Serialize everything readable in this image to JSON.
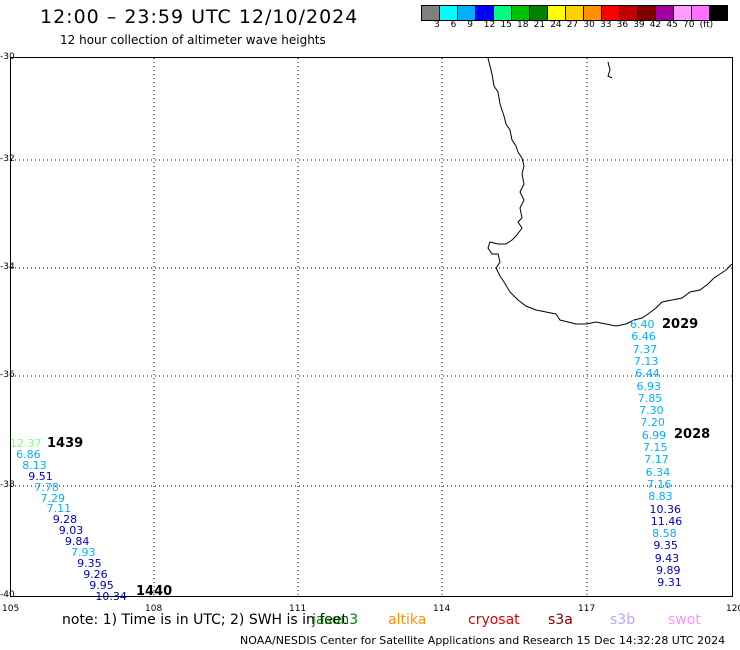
{
  "header": {
    "title": "12:00 – 23:59 UTC 12/10/2024",
    "subtitle": "12 hour collection of altimeter wave heights"
  },
  "colorbar": {
    "colors": [
      "#808080",
      "#00ffff",
      "#00b0ff",
      "#0000ff",
      "#00ff80",
      "#00c000",
      "#008000",
      "#ffff00",
      "#ffd000",
      "#ff9000",
      "#ff0000",
      "#c00000",
      "#800000",
      "#a000a0",
      "#ffa0ff",
      "#ff70ff",
      "#000000"
    ],
    "labels": [
      "3",
      "6",
      "9",
      "12",
      "15",
      "18",
      "21",
      "24",
      "27",
      "30",
      "33",
      "36",
      "39",
      "42",
      "45",
      "70",
      "(ft)"
    ]
  },
  "map": {
    "lat_labels": [
      "-30",
      "-32",
      "-34",
      "-36",
      "-38",
      "-40"
    ],
    "lon_labels": [
      "105",
      "108",
      "111",
      "114",
      "117",
      "120"
    ]
  },
  "tracks": {
    "west": {
      "time_label": "1439",
      "end_time_label": "1440",
      "time_color": "#008000",
      "values": [
        {
          "v": "12.37",
          "c": "#80ff80"
        },
        {
          "v": "6.86",
          "c": "#00b0ff"
        },
        {
          "v": "8.13",
          "c": "#00b0ff"
        },
        {
          "v": "9.51",
          "c": "#0000c0"
        },
        {
          "v": "7.78",
          "c": "#00b0ff"
        },
        {
          "v": "7.29",
          "c": "#00b0ff"
        },
        {
          "v": "7.11",
          "c": "#00b0ff"
        },
        {
          "v": "9.28",
          "c": "#0000c0"
        },
        {
          "v": "9.03",
          "c": "#0000c0"
        },
        {
          "v": "9.84",
          "c": "#0000c0"
        },
        {
          "v": "7.93",
          "c": "#00b0ff"
        },
        {
          "v": "9.35",
          "c": "#0000c0"
        },
        {
          "v": "9.26",
          "c": "#0000c0"
        },
        {
          "v": "9.95",
          "c": "#0000c0"
        },
        {
          "v": "10.34",
          "c": "#0000c0"
        }
      ]
    },
    "east": {
      "time_label_top": "2029",
      "time_label_mid": "2028",
      "time_color": "#e00000",
      "values": [
        {
          "v": "6.40",
          "c": "#00b0ff"
        },
        {
          "v": "6.46",
          "c": "#00b0ff"
        },
        {
          "v": "7.37",
          "c": "#00b0ff"
        },
        {
          "v": "7.13",
          "c": "#00b0ff"
        },
        {
          "v": "6.44",
          "c": "#00b0ff"
        },
        {
          "v": "6.93",
          "c": "#00b0ff"
        },
        {
          "v": "7.85",
          "c": "#00b0ff"
        },
        {
          "v": "7.30",
          "c": "#00b0ff"
        },
        {
          "v": "7.20",
          "c": "#00b0ff"
        },
        {
          "v": "6.99",
          "c": "#00b0ff"
        },
        {
          "v": "7.15",
          "c": "#00b0ff"
        },
        {
          "v": "7.17",
          "c": "#00b0ff"
        },
        {
          "v": "6.34",
          "c": "#00b0ff"
        },
        {
          "v": "7.16",
          "c": "#00b0ff"
        },
        {
          "v": "8.83",
          "c": "#00b0ff"
        },
        {
          "v": "10.36",
          "c": "#0000c0"
        },
        {
          "v": "11.46",
          "c": "#0000c0"
        },
        {
          "v": "8.58",
          "c": "#00b0ff"
        },
        {
          "v": "9.35",
          "c": "#0000c0"
        },
        {
          "v": "9.43",
          "c": "#0000c0"
        },
        {
          "v": "9.89",
          "c": "#0000c0"
        },
        {
          "v": "9.31",
          "c": "#0000c0"
        }
      ]
    }
  },
  "footer": {
    "note": "note:  1) Time is in UTC;  2) SWH is in feet",
    "satellites": [
      {
        "name": "jason3",
        "color": "#008000"
      },
      {
        "name": "altika",
        "color": "#ff9000"
      },
      {
        "name": "cryosat",
        "color": "#e00000"
      },
      {
        "name": "s3a",
        "color": "#800000"
      },
      {
        "name": "s3b",
        "color": "#c0a0ff"
      },
      {
        "name": "swot",
        "color": "#ff90ff"
      }
    ],
    "credit": "NOAA/NESDIS Center for Satellite Applications and Research     15 Dec 14:32:28 UTC 2024"
  }
}
